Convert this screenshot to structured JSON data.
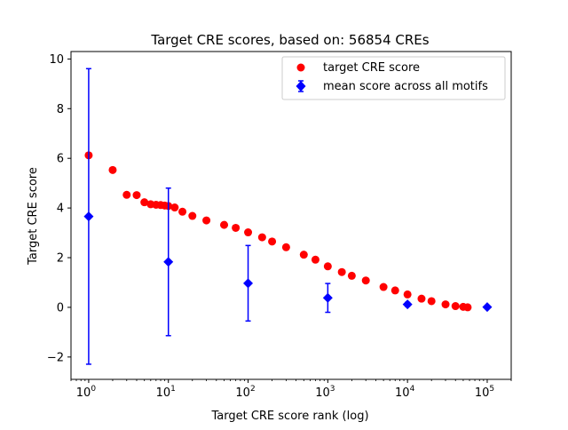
{
  "chart_data": {
    "type": "scatter",
    "title": "Target CRE scores, based on: 56854 CREs",
    "xlabel": "Target CRE score rank (log)",
    "ylabel": "Target CRE score",
    "xscale": "log",
    "xlim": [
      0.6,
      200000
    ],
    "ylim": [
      -2.9,
      10.3
    ],
    "grid": false,
    "legend_position": "upper right",
    "x_ticks": [
      {
        "base": "10",
        "exp": "0",
        "value": 1
      },
      {
        "base": "10",
        "exp": "1",
        "value": 10
      },
      {
        "base": "10",
        "exp": "2",
        "value": 100
      },
      {
        "base": "10",
        "exp": "3",
        "value": 1000
      },
      {
        "base": "10",
        "exp": "4",
        "value": 10000
      },
      {
        "base": "10",
        "exp": "5",
        "value": 100000
      }
    ],
    "y_ticks": [
      {
        "label": "−2",
        "value": -2
      },
      {
        "label": "0",
        "value": 0
      },
      {
        "label": "2",
        "value": 2
      },
      {
        "label": "4",
        "value": 4
      },
      {
        "label": "6",
        "value": 6
      },
      {
        "label": "8",
        "value": 8
      },
      {
        "label": "10",
        "value": 10
      }
    ],
    "series": [
      {
        "name": "target CRE score",
        "color": "#ff0000",
        "marker": "circle",
        "x": [
          1,
          2,
          3,
          4,
          5,
          6,
          7,
          8,
          9,
          10,
          12,
          15,
          20,
          30,
          50,
          70,
          100,
          150,
          200,
          300,
          500,
          700,
          1000,
          1500,
          2000,
          3000,
          5000,
          7000,
          10000,
          15000,
          20000,
          30000,
          40000,
          50000,
          56854
        ],
        "y": [
          6.12,
          5.53,
          4.53,
          4.52,
          4.23,
          4.15,
          4.13,
          4.12,
          4.1,
          4.08,
          4.02,
          3.85,
          3.68,
          3.5,
          3.32,
          3.2,
          3.02,
          2.82,
          2.65,
          2.42,
          2.12,
          1.92,
          1.65,
          1.42,
          1.27,
          1.08,
          0.82,
          0.68,
          0.52,
          0.35,
          0.25,
          0.12,
          0.05,
          0.02,
          0.0
        ]
      },
      {
        "name": "mean score across all motifs",
        "color": "#0000ff",
        "marker": "diamond",
        "error_bars": true,
        "x": [
          1,
          10,
          100,
          1000,
          10000,
          100000
        ],
        "y": [
          3.66,
          1.83,
          0.97,
          0.38,
          0.12,
          0.01
        ],
        "err": [
          5.95,
          2.97,
          1.52,
          0.58,
          0.08,
          0.0
        ]
      }
    ]
  }
}
